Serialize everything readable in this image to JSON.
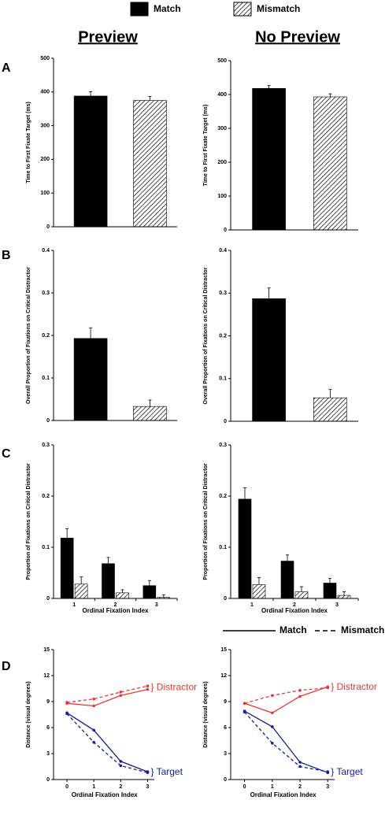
{
  "legend": [
    {
      "name": "Match",
      "hatch": false
    },
    {
      "name": "Mismatch",
      "hatch": true
    }
  ],
  "columns": [
    "Preview",
    "No Preview"
  ],
  "row_labels": [
    "A",
    "B",
    "C",
    "D"
  ],
  "line_legend": [
    {
      "name": "Match",
      "dash": false
    },
    {
      "name": "Mismatch",
      "dash": true
    }
  ],
  "chart_data": [
    {
      "type": "bar",
      "ylabel": "Time to First Fixate Target (ms)",
      "ylim": [
        0,
        500
      ],
      "yticks": [
        0,
        100,
        200,
        300,
        400,
        500
      ],
      "values": [
        388,
        375
      ],
      "errors": [
        13,
        12
      ],
      "hatch": [
        false,
        true
      ]
    },
    {
      "type": "bar",
      "ylabel": "Time to First Fixate Target (ms)",
      "ylim": [
        0,
        500
      ],
      "yticks": [
        0,
        100,
        200,
        300,
        400,
        500
      ],
      "values": [
        418,
        393
      ],
      "errors": [
        9,
        9
      ],
      "hatch": [
        false,
        true
      ]
    },
    {
      "type": "bar",
      "ylabel": "Overall Proportion of Fixations on Critical Distractor",
      "ylim": [
        0,
        0.4
      ],
      "yticks": [
        0,
        0.1,
        0.2,
        0.3,
        0.4
      ],
      "values": [
        0.193,
        0.033
      ],
      "errors": [
        0.025,
        0.015
      ],
      "hatch": [
        false,
        true
      ]
    },
    {
      "type": "bar",
      "ylabel": "Overall Proportion of Fixations on Critical Distractor",
      "ylim": [
        0,
        0.4
      ],
      "yticks": [
        0,
        0.1,
        0.2,
        0.3,
        0.4
      ],
      "values": [
        0.287,
        0.055
      ],
      "errors": [
        0.025,
        0.02
      ],
      "hatch": [
        false,
        true
      ]
    },
    {
      "type": "grouped_bar",
      "ylabel": "Proportion of Fixations on Critical Distractor",
      "xlabel": "Ordinal Fixation Index",
      "ylim": [
        0,
        0.3
      ],
      "yticks": [
        0,
        0.1,
        0.2,
        0.3
      ],
      "categories": [
        "1",
        "2",
        "3"
      ],
      "series": [
        {
          "hatch": false,
          "values": [
            0.118,
            0.068,
            0.025
          ],
          "errors": [
            0.018,
            0.012,
            0.01
          ]
        },
        {
          "hatch": true,
          "values": [
            0.028,
            0.011,
            0.002
          ],
          "errors": [
            0.014,
            0.006,
            0.005
          ]
        }
      ]
    },
    {
      "type": "grouped_bar",
      "ylabel": "Proportion of Fixations on Critical Distractor",
      "xlabel": "Ordinal Fixation Index",
      "ylim": [
        0,
        0.3
      ],
      "yticks": [
        0,
        0.1,
        0.2,
        0.3
      ],
      "categories": [
        "1",
        "2",
        "3"
      ],
      "series": [
        {
          "hatch": false,
          "values": [
            0.194,
            0.073,
            0.03
          ],
          "errors": [
            0.022,
            0.012,
            0.009
          ]
        },
        {
          "hatch": true,
          "values": [
            0.027,
            0.013,
            0.006
          ],
          "errors": [
            0.014,
            0.01,
            0.007
          ]
        }
      ]
    },
    {
      "type": "line",
      "ylabel": "Distance (visual degrees)",
      "xlabel": "Ordinal Fixation Index",
      "x": [
        0,
        1,
        2,
        3
      ],
      "xlim": [
        -0.5,
        4.1
      ],
      "xticks": [
        0,
        1,
        2,
        3
      ],
      "ylim": [
        0,
        15
      ],
      "yticks": [
        0,
        3,
        6,
        9,
        12,
        15
      ],
      "series": [
        {
          "color": "#e8373a",
          "dash": false,
          "values": [
            8.8,
            8.5,
            9.7,
            10.4
          ]
        },
        {
          "color": "#e8373a",
          "dash": true,
          "values": [
            8.9,
            9.3,
            10.1,
            10.8
          ]
        },
        {
          "color": "#1a1a9a",
          "dash": false,
          "values": [
            7.7,
            5.7,
            2.1,
            0.9
          ]
        },
        {
          "color": "#1a1a9a",
          "dash": true,
          "values": [
            7.6,
            4.3,
            1.6,
            0.8
          ]
        }
      ],
      "labels": [
        {
          "text": "} Distractor",
          "color": "#e8373a"
        },
        {
          "text": "} Target",
          "color": "#1a1a9a"
        }
      ]
    },
    {
      "type": "line",
      "ylabel": "Distance (visual degrees)",
      "xlabel": "Ordinal Fixation Index",
      "x": [
        0,
        1,
        2,
        3
      ],
      "xlim": [
        -0.5,
        4.1
      ],
      "xticks": [
        0,
        1,
        2,
        3
      ],
      "ylim": [
        0,
        15
      ],
      "yticks": [
        0,
        3,
        6,
        9,
        12,
        15
      ],
      "series": [
        {
          "color": "#e8373a",
          "dash": false,
          "values": [
            8.8,
            7.7,
            9.6,
            10.7
          ]
        },
        {
          "color": "#e8373a",
          "dash": true,
          "values": [
            8.8,
            9.7,
            10.3,
            10.6
          ]
        },
        {
          "color": "#1a1a9a",
          "dash": false,
          "values": [
            7.9,
            6.1,
            2.0,
            0.8
          ]
        },
        {
          "color": "#1a1a9a",
          "dash": true,
          "values": [
            7.8,
            4.2,
            1.5,
            0.9
          ]
        }
      ],
      "labels": [
        {
          "text": "} Distractor",
          "color": "#e8373a"
        },
        {
          "text": "} Target",
          "color": "#1a1a9a"
        }
      ]
    }
  ]
}
